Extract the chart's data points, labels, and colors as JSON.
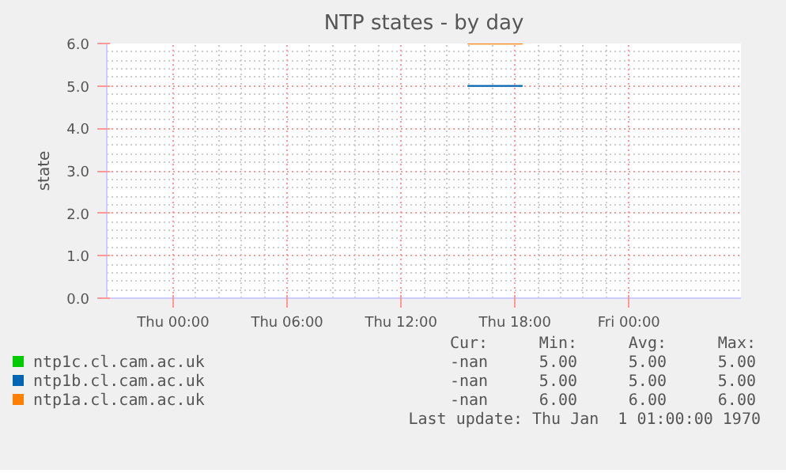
{
  "chart_data": {
    "type": "line",
    "title": "NTP states - by day",
    "ylabel": "state",
    "x": [
      "1970-01-01T15:30",
      "1970-01-01T18:24"
    ],
    "series": [
      {
        "name": "ntp1c.cl.cam.ac.uk",
        "color": "#00cc00",
        "values": [
          null,
          null
        ]
      },
      {
        "name": "ntp1b.cl.cam.ac.uk",
        "color": "#0066b3",
        "values": [
          5,
          5
        ]
      },
      {
        "name": "ntp1a.cl.cam.ac.uk",
        "color": "#ff8000",
        "values": [
          6,
          6
        ]
      }
    ],
    "xlim": [
      "1969-12-31T20:30",
      "1970-01-02T05:54"
    ],
    "xticks": [
      {
        "value": "1970-01-01T00:00",
        "label": "Thu 00:00"
      },
      {
        "value": "1970-01-01T06:00",
        "label": "Thu 06:00"
      },
      {
        "value": "1970-01-01T12:00",
        "label": "Thu 12:00"
      },
      {
        "value": "1970-01-01T18:00",
        "label": "Thu 18:00"
      },
      {
        "value": "1970-01-02T00:00",
        "label": "Fri 00:00"
      }
    ],
    "ylim": [
      0,
      6
    ],
    "yticks": [
      {
        "value": 0,
        "label": "0.0"
      },
      {
        "value": 1,
        "label": "1.0"
      },
      {
        "value": 2,
        "label": "2.0"
      },
      {
        "value": 3,
        "label": "3.0"
      },
      {
        "value": 4,
        "label": "4.0"
      },
      {
        "value": 5,
        "label": "5.0"
      },
      {
        "value": 6,
        "label": "6.0"
      }
    ],
    "grid": true,
    "legend": "bottom",
    "marker": "none",
    "line_style": "solid",
    "annotations": [
      "Cur:",
      "Min:",
      "Avg:",
      "Max:",
      "-nan",
      "5.00",
      "5.00",
      "5.00",
      "-nan",
      "5.00",
      "5.00",
      "5.00",
      "-nan",
      "6.00",
      "6.00",
      "6.00",
      "Last update: Thu Jan  1 01:00:00 1970"
    ]
  }
}
